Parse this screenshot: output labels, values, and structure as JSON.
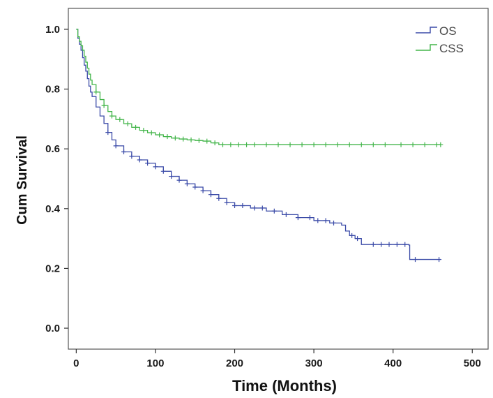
{
  "chart_data": {
    "type": "line",
    "title": "",
    "xlabel": "Time (Months)",
    "ylabel": "Cum Survival",
    "xlim": [
      -10,
      520
    ],
    "ylim": [
      -0.07,
      1.07
    ],
    "xticks": [
      "0",
      "100",
      "200",
      "300",
      "400",
      "500"
    ],
    "yticks": [
      "0.0",
      "0.2",
      "0.4",
      "0.6",
      "0.8",
      "1.0"
    ],
    "grid": false,
    "legend_position": "top-right",
    "step": true,
    "censor_marks": true,
    "series": [
      {
        "name": "OS",
        "color": "#3b4ba8",
        "points": [
          [
            0,
            1.0
          ],
          [
            2,
            0.97
          ],
          [
            4,
            0.95
          ],
          [
            6,
            0.93
          ],
          [
            8,
            0.905
          ],
          [
            10,
            0.88
          ],
          [
            12,
            0.86
          ],
          [
            14,
            0.835
          ],
          [
            16,
            0.81
          ],
          [
            18,
            0.79
          ],
          [
            20,
            0.775
          ],
          [
            25,
            0.74
          ],
          [
            30,
            0.71
          ],
          [
            35,
            0.685
          ],
          [
            40,
            0.655
          ],
          [
            45,
            0.63
          ],
          [
            50,
            0.61
          ],
          [
            60,
            0.59
          ],
          [
            70,
            0.575
          ],
          [
            80,
            0.563
          ],
          [
            90,
            0.552
          ],
          [
            100,
            0.54
          ],
          [
            110,
            0.525
          ],
          [
            120,
            0.508
          ],
          [
            130,
            0.495
          ],
          [
            140,
            0.483
          ],
          [
            150,
            0.472
          ],
          [
            160,
            0.46
          ],
          [
            170,
            0.447
          ],
          [
            180,
            0.434
          ],
          [
            190,
            0.42
          ],
          [
            200,
            0.41
          ],
          [
            220,
            0.402
          ],
          [
            240,
            0.392
          ],
          [
            260,
            0.38
          ],
          [
            280,
            0.37
          ],
          [
            300,
            0.36
          ],
          [
            320,
            0.352
          ],
          [
            335,
            0.345
          ],
          [
            340,
            0.325
          ],
          [
            345,
            0.31
          ],
          [
            352,
            0.3
          ],
          [
            360,
            0.28
          ],
          [
            390,
            0.28
          ],
          [
            420,
            0.278
          ],
          [
            421,
            0.23
          ],
          [
            460,
            0.23
          ]
        ],
        "censor_x": [
          40,
          50,
          60,
          70,
          80,
          90,
          100,
          110,
          120,
          130,
          140,
          150,
          160,
          170,
          180,
          190,
          200,
          210,
          225,
          235,
          250,
          265,
          280,
          295,
          305,
          315,
          325,
          348,
          355,
          375,
          385,
          395,
          405,
          415,
          428,
          458
        ]
      },
      {
        "name": "CSS",
        "color": "#43b54a",
        "points": [
          [
            0,
            1.0
          ],
          [
            2,
            0.975
          ],
          [
            4,
            0.96
          ],
          [
            6,
            0.945
          ],
          [
            8,
            0.93
          ],
          [
            10,
            0.91
          ],
          [
            12,
            0.89
          ],
          [
            14,
            0.87
          ],
          [
            16,
            0.85
          ],
          [
            18,
            0.83
          ],
          [
            20,
            0.815
          ],
          [
            25,
            0.79
          ],
          [
            30,
            0.765
          ],
          [
            35,
            0.745
          ],
          [
            40,
            0.725
          ],
          [
            45,
            0.71
          ],
          [
            50,
            0.698
          ],
          [
            60,
            0.684
          ],
          [
            70,
            0.672
          ],
          [
            80,
            0.662
          ],
          [
            90,
            0.654
          ],
          [
            100,
            0.647
          ],
          [
            110,
            0.641
          ],
          [
            120,
            0.636
          ],
          [
            130,
            0.633
          ],
          [
            140,
            0.63
          ],
          [
            150,
            0.628
          ],
          [
            160,
            0.626
          ],
          [
            170,
            0.62
          ],
          [
            180,
            0.614
          ],
          [
            200,
            0.614
          ],
          [
            250,
            0.614
          ],
          [
            300,
            0.614
          ],
          [
            350,
            0.614
          ],
          [
            400,
            0.614
          ],
          [
            460,
            0.614
          ]
        ],
        "censor_x": [
          25,
          35,
          45,
          55,
          65,
          75,
          85,
          95,
          105,
          115,
          125,
          135,
          145,
          155,
          165,
          175,
          185,
          195,
          205,
          215,
          225,
          240,
          255,
          270,
          285,
          300,
          315,
          330,
          345,
          360,
          375,
          390,
          410,
          425,
          440,
          455,
          460
        ]
      }
    ]
  }
}
